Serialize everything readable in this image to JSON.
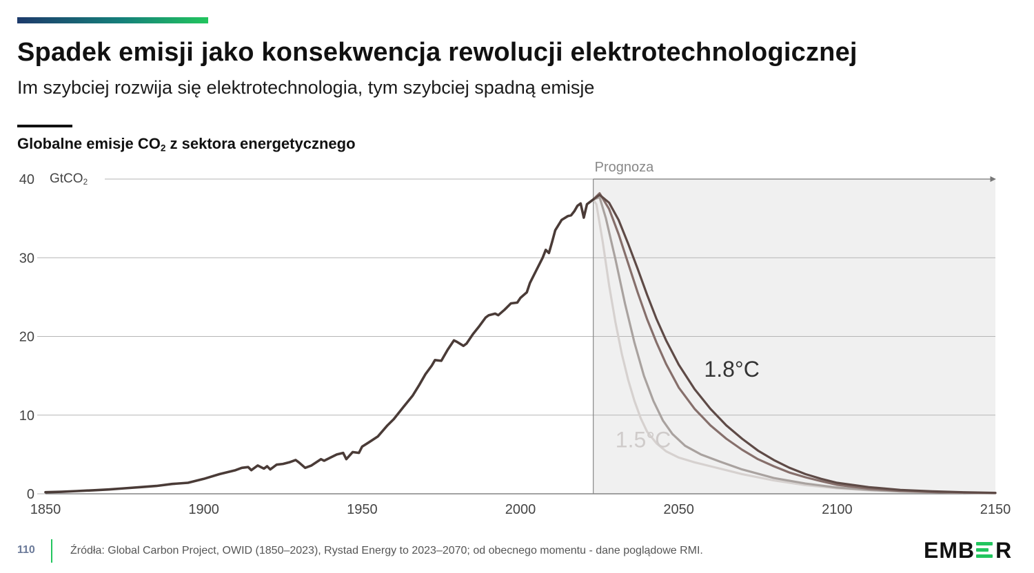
{
  "header": {
    "title": "Spadek emisji jako konsekwencja rewolucji elektrotechnologicznej",
    "subtitle": "Im szybciej rozwija się elektrotechnologia, tym szybciej spadną emisje"
  },
  "chart_data": {
    "type": "line",
    "title_main": "Globalne emisje CO",
    "title_sub": "2",
    "title_rest": " z sektora energetycznego",
    "unit_main": "GtCO",
    "unit_sub": "2",
    "xlim": [
      1850,
      2150
    ],
    "ylim": [
      0,
      40
    ],
    "xticks": [
      "1850",
      "1900",
      "1950",
      "2000",
      "2050",
      "2100",
      "2150"
    ],
    "yticks": [
      "0",
      "10",
      "20",
      "30",
      "40"
    ],
    "grid": true,
    "forecast": {
      "label": "Prognoza",
      "start_year": 2023,
      "end_year": 2150
    },
    "colors": {
      "historical": "#4a3b37",
      "forecast_1_8": "#5e4a46",
      "forecast_mid1": "#866f6b",
      "forecast_mid2": "#a9a29f",
      "forecast_1_5": "#d6d1cf",
      "forecast_area": "#f0f0f0",
      "grid": "#b5b5b5"
    },
    "series": [
      {
        "label": "",
        "points": [
          [
            1850,
            0.2
          ],
          [
            1855,
            0.25
          ],
          [
            1860,
            0.35
          ],
          [
            1865,
            0.45
          ],
          [
            1870,
            0.55
          ],
          [
            1875,
            0.7
          ],
          [
            1880,
            0.85
          ],
          [
            1885,
            1.0
          ],
          [
            1890,
            1.25
          ],
          [
            1895,
            1.4
          ],
          [
            1900,
            1.9
          ],
          [
            1905,
            2.5
          ],
          [
            1910,
            3.0
          ],
          [
            1912,
            3.3
          ],
          [
            1914,
            3.4
          ],
          [
            1915,
            3.0
          ],
          [
            1917,
            3.6
          ],
          [
            1919,
            3.2
          ],
          [
            1920,
            3.5
          ],
          [
            1921,
            3.1
          ],
          [
            1923,
            3.7
          ],
          [
            1925,
            3.8
          ],
          [
            1927,
            4.0
          ],
          [
            1929,
            4.3
          ],
          [
            1930,
            4.0
          ],
          [
            1932,
            3.3
          ],
          [
            1934,
            3.6
          ],
          [
            1937,
            4.4
          ],
          [
            1938,
            4.2
          ],
          [
            1940,
            4.6
          ],
          [
            1942,
            5.0
          ],
          [
            1944,
            5.2
          ],
          [
            1945,
            4.4
          ],
          [
            1947,
            5.3
          ],
          [
            1949,
            5.2
          ],
          [
            1950,
            6.0
          ],
          [
            1952,
            6.5
          ],
          [
            1955,
            7.3
          ],
          [
            1958,
            8.7
          ],
          [
            1960,
            9.5
          ],
          [
            1963,
            11.0
          ],
          [
            1966,
            12.5
          ],
          [
            1968,
            13.8
          ],
          [
            1970,
            15.2
          ],
          [
            1972,
            16.3
          ],
          [
            1973,
            17.0
          ],
          [
            1975,
            16.9
          ],
          [
            1977,
            18.3
          ],
          [
            1979,
            19.5
          ],
          [
            1980,
            19.3
          ],
          [
            1982,
            18.8
          ],
          [
            1983,
            19.1
          ],
          [
            1985,
            20.3
          ],
          [
            1987,
            21.3
          ],
          [
            1989,
            22.4
          ],
          [
            1990,
            22.7
          ],
          [
            1992,
            22.9
          ],
          [
            1993,
            22.7
          ],
          [
            1995,
            23.4
          ],
          [
            1997,
            24.2
          ],
          [
            1999,
            24.3
          ],
          [
            2000,
            24.9
          ],
          [
            2002,
            25.6
          ],
          [
            2003,
            26.8
          ],
          [
            2005,
            28.4
          ],
          [
            2007,
            30.0
          ],
          [
            2008,
            31.0
          ],
          [
            2009,
            30.6
          ],
          [
            2010,
            32.0
          ],
          [
            2011,
            33.5
          ],
          [
            2013,
            34.8
          ],
          [
            2015,
            35.3
          ],
          [
            2016,
            35.4
          ],
          [
            2017,
            35.9
          ],
          [
            2018,
            36.6
          ],
          [
            2019,
            36.9
          ],
          [
            2020,
            35.1
          ],
          [
            2021,
            36.8
          ],
          [
            2022,
            37.1
          ],
          [
            2023,
            37.4
          ]
        ]
      },
      {
        "label": "1.8°C",
        "points": [
          [
            2023,
            37.4
          ],
          [
            2025,
            38.0
          ],
          [
            2028,
            37.0
          ],
          [
            2031,
            34.8
          ],
          [
            2034,
            31.8
          ],
          [
            2037,
            28.6
          ],
          [
            2040,
            25.3
          ],
          [
            2043,
            22.2
          ],
          [
            2046,
            19.5
          ],
          [
            2050,
            16.4
          ],
          [
            2055,
            13.3
          ],
          [
            2060,
            10.8
          ],
          [
            2065,
            8.7
          ],
          [
            2070,
            7.0
          ],
          [
            2075,
            5.5
          ],
          [
            2080,
            4.3
          ],
          [
            2085,
            3.3
          ],
          [
            2090,
            2.5
          ],
          [
            2095,
            1.9
          ],
          [
            2100,
            1.4
          ],
          [
            2110,
            0.85
          ],
          [
            2120,
            0.5
          ],
          [
            2130,
            0.32
          ],
          [
            2140,
            0.2
          ],
          [
            2150,
            0.12
          ]
        ]
      },
      {
        "label": "",
        "points": [
          [
            2023,
            37.4
          ],
          [
            2025,
            38.2
          ],
          [
            2028,
            36.2
          ],
          [
            2031,
            33.0
          ],
          [
            2034,
            29.3
          ],
          [
            2037,
            25.6
          ],
          [
            2040,
            22.2
          ],
          [
            2043,
            19.2
          ],
          [
            2046,
            16.5
          ],
          [
            2050,
            13.5
          ],
          [
            2055,
            10.8
          ],
          [
            2060,
            8.7
          ],
          [
            2065,
            7.0
          ],
          [
            2070,
            5.6
          ],
          [
            2075,
            4.4
          ],
          [
            2080,
            3.5
          ],
          [
            2085,
            2.7
          ],
          [
            2090,
            2.1
          ],
          [
            2095,
            1.6
          ],
          [
            2100,
            1.15
          ],
          [
            2110,
            0.65
          ],
          [
            2120,
            0.38
          ],
          [
            2130,
            0.23
          ],
          [
            2140,
            0.15
          ],
          [
            2150,
            0.1
          ]
        ]
      },
      {
        "label": "",
        "points": [
          [
            2023,
            37.4
          ],
          [
            2025,
            37.7
          ],
          [
            2027,
            35.0
          ],
          [
            2030,
            29.8
          ],
          [
            2033,
            24.2
          ],
          [
            2036,
            19.2
          ],
          [
            2039,
            15.0
          ],
          [
            2042,
            11.8
          ],
          [
            2045,
            9.3
          ],
          [
            2048,
            7.6
          ],
          [
            2052,
            6.1
          ],
          [
            2057,
            5.0
          ],
          [
            2063,
            4.1
          ],
          [
            2070,
            3.1
          ],
          [
            2080,
            2.0
          ],
          [
            2090,
            1.3
          ],
          [
            2100,
            0.8
          ],
          [
            2110,
            0.5
          ],
          [
            2120,
            0.3
          ],
          [
            2135,
            0.18
          ],
          [
            2150,
            0.1
          ]
        ]
      },
      {
        "label": "1.5°C",
        "points": [
          [
            2023,
            37.4
          ],
          [
            2024,
            36.8
          ],
          [
            2026,
            32.0
          ],
          [
            2028,
            26.5
          ],
          [
            2030,
            21.8
          ],
          [
            2032,
            17.8
          ],
          [
            2034,
            14.5
          ],
          [
            2036,
            11.8
          ],
          [
            2038,
            9.6
          ],
          [
            2040,
            7.9
          ],
          [
            2043,
            6.4
          ],
          [
            2046,
            5.4
          ],
          [
            2050,
            4.6
          ],
          [
            2055,
            4.0
          ],
          [
            2060,
            3.5
          ],
          [
            2065,
            3.0
          ],
          [
            2070,
            2.5
          ],
          [
            2080,
            1.7
          ],
          [
            2090,
            1.1
          ],
          [
            2100,
            0.7
          ],
          [
            2110,
            0.45
          ],
          [
            2120,
            0.28
          ],
          [
            2135,
            0.16
          ],
          [
            2150,
            0.09
          ]
        ]
      }
    ]
  },
  "footer": {
    "page": "110",
    "source": "Źródła: Global Carbon Project, OWID (1850–2023), Rystad Energy to 2023–2070; od obecnego momentu - dane poglądowe RMI.",
    "logo_left": "EMB",
    "logo_right": "R"
  }
}
